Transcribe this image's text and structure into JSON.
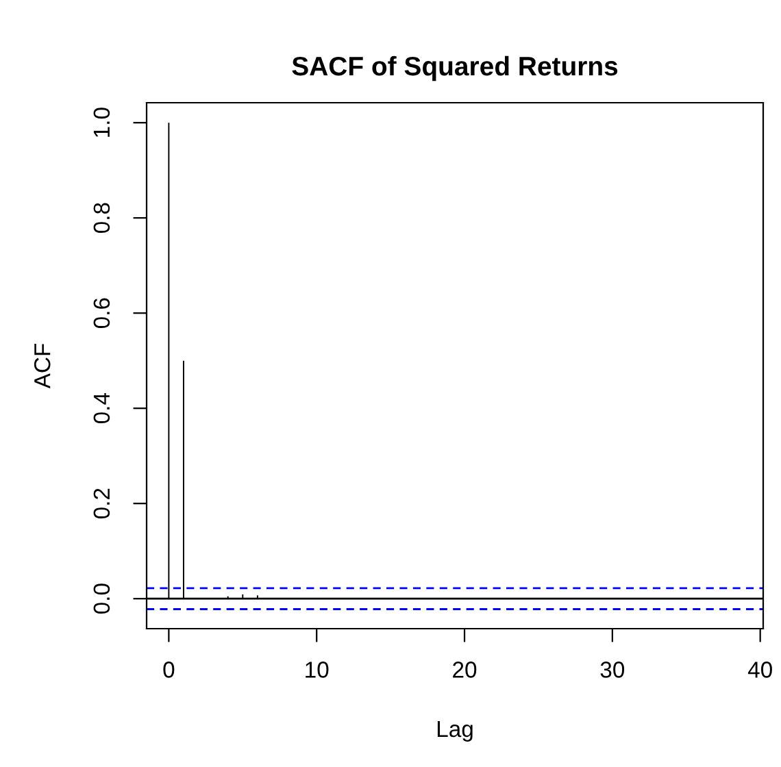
{
  "chart_data": {
    "type": "bar",
    "title": "SACF of Squared Returns",
    "xlabel": "Lag",
    "ylabel": "ACF",
    "x": [
      0,
      1,
      2,
      3,
      4,
      5,
      6
    ],
    "values": [
      1.0,
      0.5,
      null,
      null,
      0.005,
      0.009,
      0.007
    ],
    "color": "#000000",
    "xlim": [
      -1.5,
      40.2
    ],
    "ylim": [
      -0.063,
      1.042
    ],
    "xticks": [
      0,
      10,
      20,
      30,
      40
    ],
    "yticks": [
      {
        "value": 0,
        "label": "0.0"
      },
      {
        "value": 0.2,
        "label": "0.2"
      },
      {
        "value": 0.4,
        "label": "0.4"
      },
      {
        "value": 0.6,
        "label": "0.6"
      },
      {
        "value": 0.8,
        "label": "0.8"
      },
      {
        "value": 1,
        "label": "1.0"
      }
    ],
    "ref_lines": [
      {
        "axis": "y",
        "value": 0,
        "color": "#000000",
        "line_style": "solid"
      },
      {
        "axis": "y",
        "value": 0.022,
        "color": "#0000ff",
        "line_style": "dashed"
      },
      {
        "axis": "y",
        "value": -0.022,
        "color": "#0000ff",
        "line_style": "dashed"
      }
    ],
    "grid": false
  }
}
